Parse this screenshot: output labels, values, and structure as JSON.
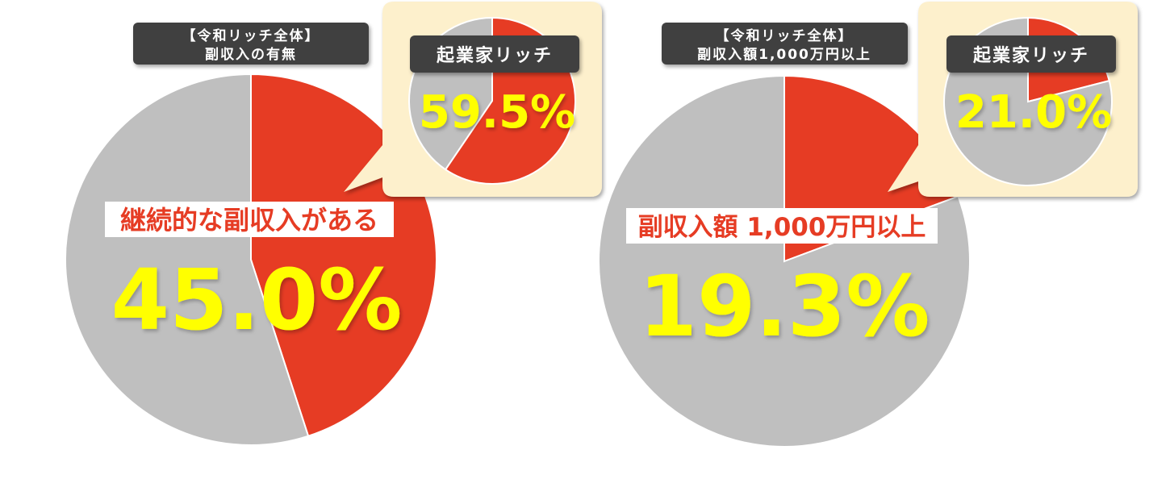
{
  "colors": {
    "highlight": "#e63c24",
    "rest": "#bfbfbf",
    "value_text": "#ffff00",
    "header_bg": "#404040",
    "callout_bg": "#fdf0cc"
  },
  "chart_data": [
    {
      "type": "pie",
      "header": [
        "【令和リッチ全体】",
        "副収入の有無"
      ],
      "label": "継続的な副収入がある",
      "value": 45.0,
      "value_text": "45.0%",
      "slices": [
        {
          "name": "継続的な副収入がある",
          "value": 45.0
        },
        {
          "name": "",
          "value": 55.0
        }
      ],
      "inset": {
        "label": "起業家リッチ",
        "value": 59.5,
        "value_text": "59.5%"
      }
    },
    {
      "type": "pie",
      "header": [
        "【令和リッチ全体】",
        "副収入額1,000万円以上"
      ],
      "label": "副収入額 1,000万円以上",
      "value": 19.3,
      "value_text": "19.3%",
      "slices": [
        {
          "name": "副収入額 1,000万円以上",
          "value": 19.3
        },
        {
          "name": "",
          "value": 80.7
        }
      ],
      "inset": {
        "label": "起業家リッチ",
        "value": 21.0,
        "value_text": "21.0%"
      }
    }
  ]
}
